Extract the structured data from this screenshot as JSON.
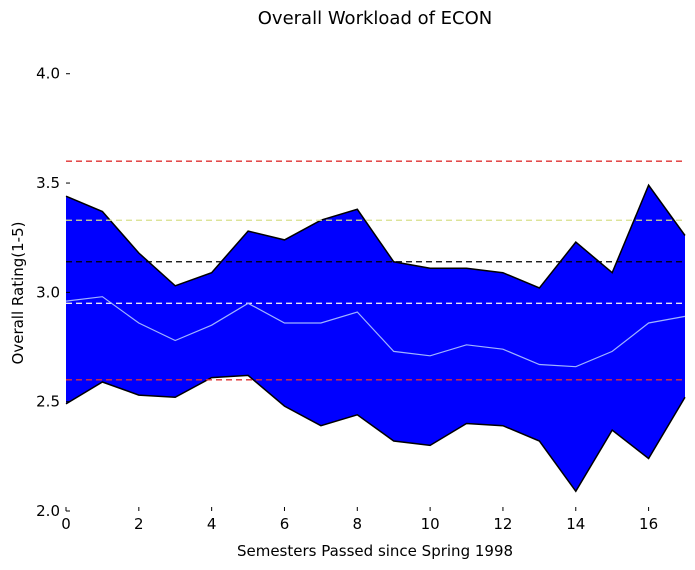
{
  "chart_data": {
    "type": "area",
    "title": "Overall Workload of ECON",
    "xlabel": "Semesters Passed since Spring 1998",
    "ylabel": "Overall Rating(1-5)",
    "xlim": [
      0,
      17
    ],
    "ylim": [
      2.0,
      4.2
    ],
    "xticks": [
      0,
      2,
      4,
      6,
      8,
      10,
      12,
      14,
      16
    ],
    "xtick_labels": [
      "0",
      "2",
      "4",
      "6",
      "8",
      "10",
      "12",
      "14",
      "16"
    ],
    "yticks": [
      2.0,
      2.5,
      3.0,
      3.5,
      4.0
    ],
    "ytick_labels": [
      "2.0",
      "2.5",
      "3.0",
      "3.5",
      "4.0"
    ],
    "grid": false,
    "x": [
      0,
      1,
      2,
      3,
      4,
      5,
      6,
      7,
      8,
      9,
      10,
      11,
      12,
      13,
      14,
      15,
      16,
      17
    ],
    "band_upper": [
      3.44,
      3.37,
      3.18,
      3.03,
      3.09,
      3.28,
      3.24,
      3.33,
      3.38,
      3.14,
      3.11,
      3.11,
      3.09,
      3.02,
      3.23,
      3.09,
      3.49,
      3.26
    ],
    "band_lower": [
      2.49,
      2.59,
      2.53,
      2.52,
      2.61,
      2.62,
      2.48,
      2.39,
      2.44,
      2.32,
      2.3,
      2.4,
      2.39,
      2.32,
      2.09,
      2.37,
      2.24,
      2.52
    ],
    "mean_line": [
      2.96,
      2.98,
      2.86,
      2.78,
      2.85,
      2.95,
      2.86,
      2.86,
      2.91,
      2.73,
      2.71,
      2.76,
      2.74,
      2.67,
      2.66,
      2.73,
      2.86,
      2.89
    ],
    "reference_lines": [
      {
        "y": 3.6,
        "color": "#e03030",
        "style": "dashed"
      },
      {
        "y": 3.33,
        "color": "#d8e08a",
        "style": "dashed"
      },
      {
        "y": 3.14,
        "color": "#000000",
        "style": "dashed"
      },
      {
        "y": 2.95,
        "color": "#e8e8f0",
        "style": "dashed"
      },
      {
        "y": 2.6,
        "color": "#e03030",
        "style": "dashed"
      }
    ],
    "colors": {
      "band_fill": "#0000ff",
      "band_edge": "#000000",
      "mean_line": "#a0b4ff"
    }
  }
}
